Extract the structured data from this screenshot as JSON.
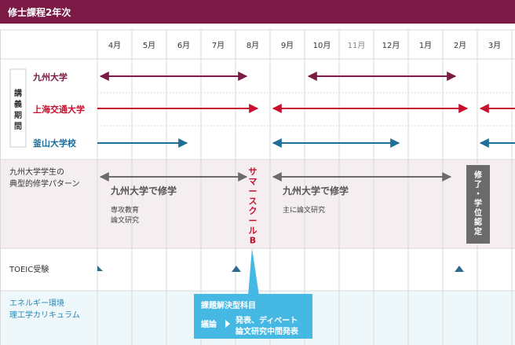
{
  "header": {
    "title": "修士課程2年次",
    "bg": "#7a1a45"
  },
  "months": [
    "4月",
    "5月",
    "6月",
    "7月",
    "8月",
    "9月",
    "10月",
    "11月",
    "12月",
    "1月",
    "2月",
    "3月"
  ],
  "sections": {
    "lecture_label": "講義期間",
    "univs": [
      {
        "name": "九州大学",
        "color": "#7a1a45"
      },
      {
        "name": "上海交通大学",
        "color": "#c8102e"
      },
      {
        "name": "釜山大学校",
        "color": "#1f6e99"
      }
    ],
    "pattern_label_line1": "九州大学学生の",
    "pattern_label_line2": "典型的修学パターン",
    "toeic_label": "TOEIC受験",
    "curr_line1": "エネルギー環境",
    "curr_line2": "理工学カリキュラム"
  },
  "pattern": {
    "block1_title": "九州大学で修学",
    "block1_sub1": "専攻教育",
    "block1_sub2": "論文研究",
    "block2_title": "九州大学で修学",
    "block2_sub1": "主に論文研究",
    "summer_school": "サマースクールB",
    "completion_label": "修了・学位認定"
  },
  "callout": {
    "title": "課題解決型科目",
    "tag": "議論",
    "line1": "発表、ディベート",
    "line2": "論文研究中間発表"
  },
  "colors": {
    "pattern_bg": "#f5eef1",
    "curr_bg": "#eef7fa",
    "callout_bg": "#45b9e4",
    "grey": "#6b6b6b",
    "toeic": "#2f6b8f",
    "border": "#d9d9d9",
    "curr_text": "#2a86b3"
  }
}
